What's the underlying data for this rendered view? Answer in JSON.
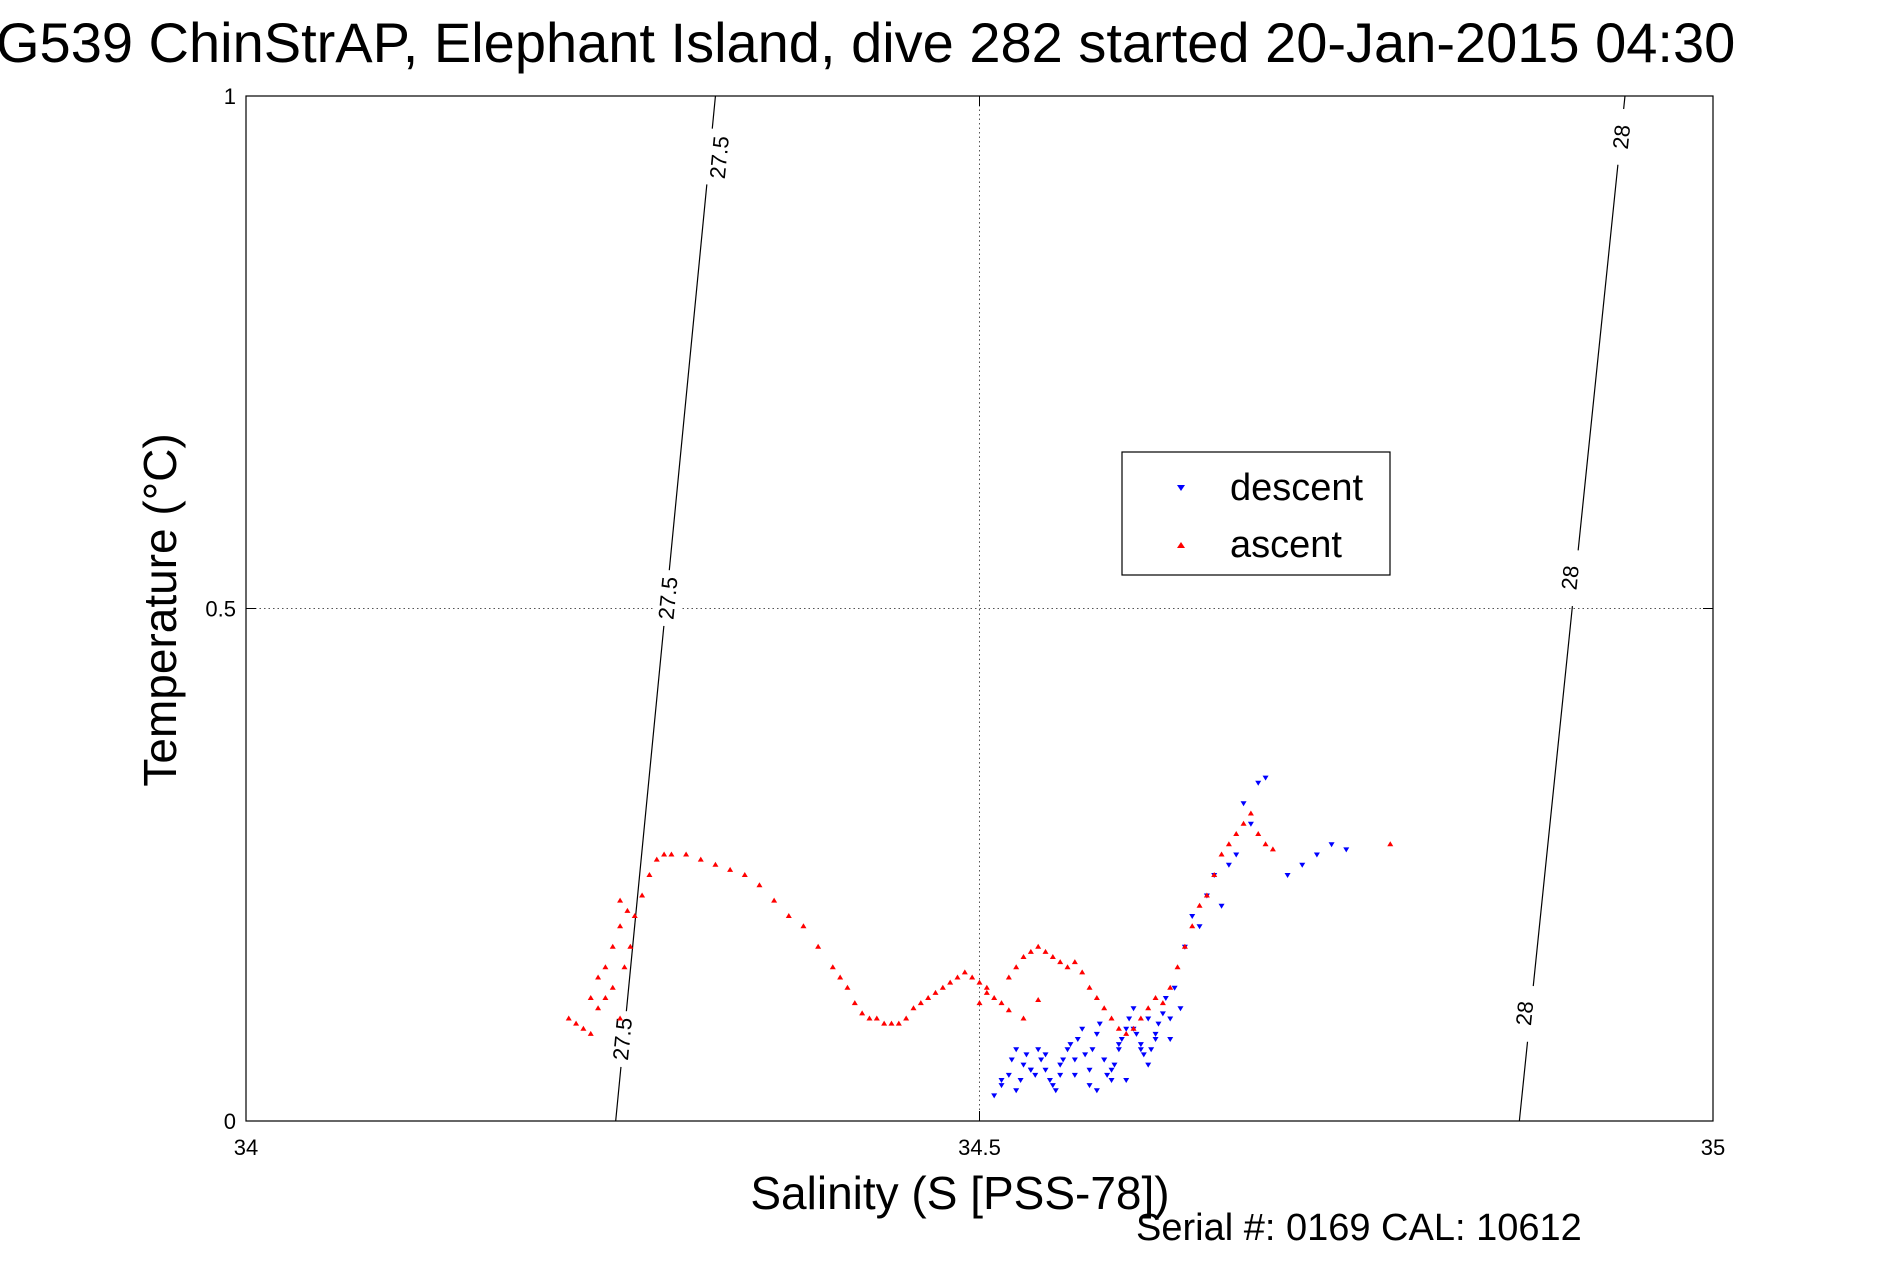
{
  "chart_data": {
    "type": "scatter",
    "title": "G539 ChinStrAP, Elephant Island, dive 282 started 20-Jan-2015 04:30",
    "xlabel": "Salinity (S [PSS-78])",
    "ylabel": "Temperature (°C)",
    "xlim": [
      34,
      35
    ],
    "ylim": [
      0,
      1
    ],
    "x_ticks": [
      34,
      34.5,
      35
    ],
    "x_tick_labels": [
      "34",
      "34.5",
      "35"
    ],
    "y_ticks": [
      0,
      0.5,
      1
    ],
    "y_tick_labels": [
      "0",
      "0.5",
      "1"
    ],
    "grid": true,
    "legend_position": "upper-center-right",
    "footer": "Serial #: 0169 CAL: 10612",
    "isopycnals": [
      {
        "label": "27.5",
        "points": [
          [
            34.252,
            0.0
          ],
          [
            34.32,
            1.0
          ]
        ],
        "label_positions": [
          [
            34.257,
            0.08
          ],
          [
            34.288,
            0.51
          ],
          [
            34.323,
            0.94
          ]
        ]
      },
      {
        "label": "28",
        "points": [
          [
            34.868,
            0.0
          ],
          [
            34.94,
            1.0
          ]
        ],
        "label_positions": [
          [
            34.872,
            0.105
          ],
          [
            34.903,
            0.53
          ],
          [
            34.938,
            0.96
          ]
        ]
      }
    ],
    "series": [
      {
        "name": "descent",
        "color": "#0000ff",
        "marker": "triangle-down",
        "x": [
          34.51,
          34.515,
          34.52,
          34.522,
          34.525,
          34.528,
          34.53,
          34.532,
          34.535,
          34.538,
          34.54,
          34.542,
          34.545,
          34.548,
          34.55,
          34.552,
          34.555,
          34.557,
          34.56,
          34.562,
          34.565,
          34.567,
          34.57,
          34.572,
          34.575,
          34.577,
          34.58,
          34.582,
          34.585,
          34.587,
          34.59,
          34.592,
          34.595,
          34.597,
          34.6,
          34.602,
          34.605,
          34.607,
          34.61,
          34.612,
          34.615,
          34.617,
          34.62,
          34.622,
          34.625,
          34.627,
          34.63,
          34.633,
          34.637,
          34.64,
          34.645,
          34.65,
          34.655,
          34.66,
          34.665,
          34.67,
          34.675,
          34.68,
          34.685,
          34.69,
          34.695,
          34.71,
          34.72,
          34.73,
          34.74,
          34.75,
          34.515,
          34.525,
          34.535,
          34.545,
          34.555,
          34.565,
          34.575,
          34.585,
          34.595,
          34.605,
          34.615,
          34.58,
          34.59,
          34.6,
          34.61,
          34.62,
          34.63
        ],
        "y": [
          0.025,
          0.035,
          0.045,
          0.06,
          0.07,
          0.04,
          0.055,
          0.065,
          0.05,
          0.045,
          0.07,
          0.06,
          0.05,
          0.04,
          0.035,
          0.03,
          0.045,
          0.06,
          0.07,
          0.075,
          0.06,
          0.08,
          0.09,
          0.065,
          0.05,
          0.07,
          0.085,
          0.095,
          0.06,
          0.045,
          0.04,
          0.055,
          0.07,
          0.08,
          0.09,
          0.1,
          0.11,
          0.085,
          0.075,
          0.065,
          0.055,
          0.07,
          0.08,
          0.095,
          0.105,
          0.12,
          0.08,
          0.13,
          0.11,
          0.17,
          0.2,
          0.19,
          0.22,
          0.24,
          0.21,
          0.25,
          0.26,
          0.31,
          0.29,
          0.33,
          0.335,
          0.24,
          0.25,
          0.26,
          0.27,
          0.265,
          0.04,
          0.03,
          0.05,
          0.065,
          0.055,
          0.045,
          0.035,
          0.06,
          0.075,
          0.09,
          0.1,
          0.03,
          0.05,
          0.04,
          0.07,
          0.085,
          0.1
        ]
      },
      {
        "name": "ascent",
        "color": "#ff0000",
        "marker": "triangle-up",
        "x": [
          34.22,
          34.225,
          34.23,
          34.235,
          34.24,
          34.245,
          34.25,
          34.255,
          34.258,
          34.262,
          34.265,
          34.27,
          34.275,
          34.28,
          34.285,
          34.29,
          34.3,
          34.31,
          34.32,
          34.33,
          34.34,
          34.35,
          34.36,
          34.37,
          34.38,
          34.39,
          34.4,
          34.405,
          34.41,
          34.415,
          34.42,
          34.425,
          34.43,
          34.435,
          34.44,
          34.445,
          34.45,
          34.455,
          34.46,
          34.465,
          34.47,
          34.475,
          34.48,
          34.485,
          34.49,
          34.495,
          34.5,
          34.505,
          34.51,
          34.515,
          34.52,
          34.525,
          34.53,
          34.535,
          34.54,
          34.545,
          34.55,
          34.555,
          34.56,
          34.565,
          34.57,
          34.575,
          34.58,
          34.585,
          34.59,
          34.595,
          34.6,
          34.605,
          34.61,
          34.615,
          34.62,
          34.625,
          34.63,
          34.635,
          34.64,
          34.645,
          34.65,
          34.655,
          34.66,
          34.665,
          34.67,
          34.675,
          34.68,
          34.685,
          34.69,
          34.695,
          34.7,
          34.78,
          34.245,
          34.25,
          34.255,
          34.24,
          34.235,
          34.26,
          34.255,
          34.5,
          34.505,
          34.52,
          34.53,
          34.54
        ],
        "y": [
          0.1,
          0.095,
          0.09,
          0.085,
          0.11,
          0.12,
          0.13,
          0.1,
          0.15,
          0.17,
          0.2,
          0.22,
          0.24,
          0.255,
          0.26,
          0.26,
          0.26,
          0.255,
          0.25,
          0.245,
          0.24,
          0.23,
          0.215,
          0.2,
          0.19,
          0.17,
          0.15,
          0.14,
          0.13,
          0.115,
          0.105,
          0.1,
          0.1,
          0.095,
          0.095,
          0.095,
          0.1,
          0.11,
          0.115,
          0.12,
          0.125,
          0.13,
          0.135,
          0.14,
          0.145,
          0.14,
          0.135,
          0.13,
          0.12,
          0.115,
          0.14,
          0.15,
          0.16,
          0.165,
          0.17,
          0.165,
          0.16,
          0.155,
          0.15,
          0.155,
          0.145,
          0.13,
          0.12,
          0.11,
          0.1,
          0.09,
          0.085,
          0.09,
          0.1,
          0.11,
          0.12,
          0.115,
          0.13,
          0.15,
          0.17,
          0.19,
          0.21,
          0.22,
          0.24,
          0.26,
          0.27,
          0.28,
          0.29,
          0.3,
          0.28,
          0.27,
          0.265,
          0.27,
          0.15,
          0.17,
          0.19,
          0.14,
          0.12,
          0.205,
          0.215,
          0.115,
          0.125,
          0.108,
          0.1,
          0.118
        ]
      }
    ]
  }
}
